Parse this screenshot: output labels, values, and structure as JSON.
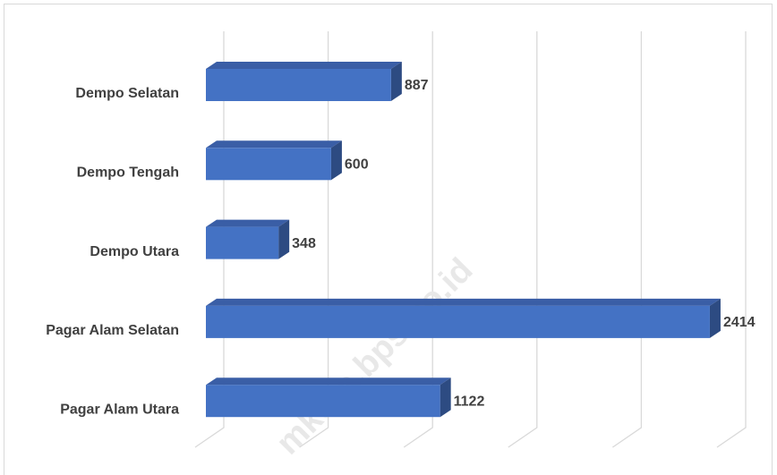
{
  "chart_data": {
    "type": "bar",
    "categories": [
      "Dempo Selatan",
      "Dempo Tengah",
      "Dempo Utara",
      "Pagar Alam Selatan",
      "Pagar Alam Utara"
    ],
    "values": [
      887,
      600,
      348,
      2414,
      1122
    ],
    "color": "#4472c4",
    "xlim": [
      0,
      2500
    ],
    "xticks": [
      0,
      500,
      1000,
      1500,
      2000,
      2500
    ],
    "grid": true,
    "watermark": "mkota.bps.go.id"
  }
}
